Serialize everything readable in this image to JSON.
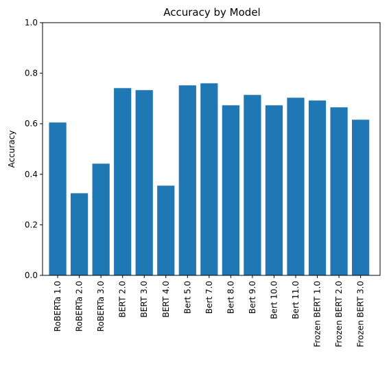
{
  "chart_data": {
    "type": "bar",
    "title": "Accuracy by Model",
    "xlabel": "",
    "ylabel": "Accuracy",
    "ylim": [
      0,
      1.0
    ],
    "yticks": [
      "0.0",
      "0.2",
      "0.4",
      "0.6",
      "0.8",
      "1.0"
    ],
    "grid": false,
    "bar_color": "#1f77b4",
    "categories": [
      "RoBERTa 1.0",
      "RoBERTa 2.0",
      "RoBERTa 3.0",
      "BERT 2.0",
      "BERT 3.0",
      "BERT 4.0",
      "Bert 5.0",
      "Bert 7.0",
      "Bert 8.0",
      "Bert 9.0",
      "Bert 10.0",
      "Bert 11.0",
      "Frozen BERT 1.0",
      "Frozen BERT 2.0",
      "Frozen BERT 3.0"
    ],
    "values": [
      0.605,
      0.325,
      0.442,
      0.741,
      0.733,
      0.355,
      0.752,
      0.76,
      0.673,
      0.714,
      0.673,
      0.703,
      0.692,
      0.665,
      0.616
    ]
  }
}
